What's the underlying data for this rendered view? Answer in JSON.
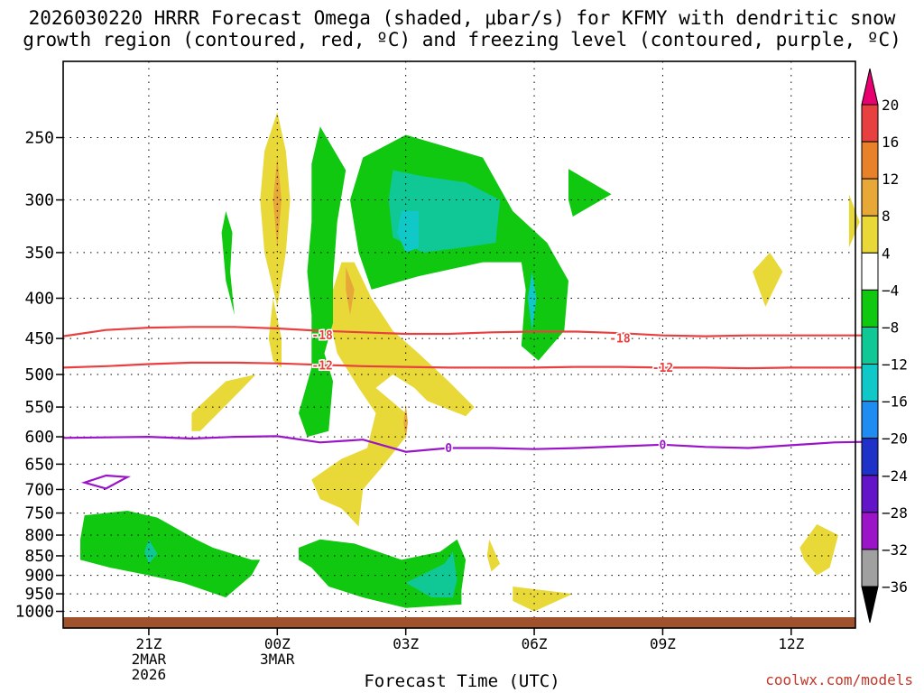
{
  "title": {
    "line1": "2026030220 HRRR Forecast Omega (shaded, μbar/s) for KFMY with dendritic snow",
    "line2": "growth region (contoured, red, ºC) and freezing level (contoured, purple, ºC)"
  },
  "credit": "coolwx.com/models",
  "chart_data": {
    "type": "contour",
    "title": "2026030220 HRRR Forecast Omega (shaded, μbar/s) for KFMY with dendritic snow growth region (contoured, red, ºC) and freezing level (contoured, purple, ºC)",
    "xlabel": "Forecast Time (UTC)",
    "ylabel": "",
    "x_unit": "hours from 2026-03-02 20Z",
    "xlim": [
      -1,
      17.5
    ],
    "ylim": [
      1050,
      200
    ],
    "y_scale": "log",
    "y_ticks": [
      250,
      300,
      350,
      400,
      450,
      500,
      550,
      600,
      650,
      700,
      750,
      800,
      850,
      900,
      950,
      1000
    ],
    "x_ticks": [
      {
        "x": 1,
        "label": "21Z",
        "sub1": "2MAR",
        "sub2": "2026"
      },
      {
        "x": 4,
        "label": "00Z",
        "sub1": "3MAR",
        "sub2": ""
      },
      {
        "x": 7,
        "label": "03Z",
        "sub1": "",
        "sub2": ""
      },
      {
        "x": 10,
        "label": "06Z",
        "sub1": "",
        "sub2": ""
      },
      {
        "x": 13,
        "label": "09Z",
        "sub1": "",
        "sub2": ""
      },
      {
        "x": 16,
        "label": "12Z",
        "sub1": "",
        "sub2": ""
      }
    ],
    "grid": true,
    "colorbar": {
      "labels": [
        "20",
        "16",
        "12",
        "8",
        "4",
        "−4",
        "−8",
        "−12",
        "−16",
        "−20",
        "−24",
        "−28",
        "−32",
        "−36"
      ],
      "colors": [
        "#e8006f",
        "#e84040",
        "#e8822a",
        "#e8a838",
        "#e8d838",
        "#ffffff",
        "#10c810",
        "#10c896",
        "#10c8c8",
        "#1e8cf0",
        "#1e32c8",
        "#6414c8",
        "#9b14c8",
        "#a0a0a0",
        "#000000"
      ]
    },
    "shaded_regions": [
      {
        "color": "#e8d838",
        "points": [
          [
            4,
            232
          ],
          [
            4.2,
            260
          ],
          [
            4.3,
            300
          ],
          [
            4.2,
            350
          ],
          [
            4,
            410
          ],
          [
            3.7,
            350
          ],
          [
            3.6,
            300
          ],
          [
            3.7,
            260
          ]
        ]
      },
      {
        "color": "#e8a838",
        "points": [
          [
            4,
            265
          ],
          [
            4.1,
            300
          ],
          [
            4,
            345
          ],
          [
            3.9,
            300
          ]
        ]
      },
      {
        "color": "#e8d838",
        "points": [
          [
            3.9,
            400
          ],
          [
            4.1,
            450
          ],
          [
            4.1,
            490
          ],
          [
            3.9,
            480
          ],
          [
            3.8,
            450
          ]
        ]
      },
      {
        "color": "#e8d838",
        "points": [
          [
            2.8,
            510
          ],
          [
            3.5,
            500
          ],
          [
            3.2,
            520
          ],
          [
            2.2,
            590
          ],
          [
            2.0,
            590
          ],
          [
            2.0,
            560
          ]
        ]
      },
      {
        "color": "#e8d838",
        "points": [
          [
            5.8,
            360
          ],
          [
            6.2,
            400
          ],
          [
            6.7,
            440
          ],
          [
            7.3,
            470
          ],
          [
            8,
            510
          ],
          [
            8.6,
            550
          ],
          [
            8.4,
            565
          ],
          [
            7.5,
            540
          ],
          [
            7.2,
            520
          ],
          [
            6.7,
            500
          ],
          [
            6.3,
            520
          ],
          [
            7.0,
            560
          ],
          [
            7.0,
            600
          ],
          [
            6.4,
            660
          ],
          [
            6.0,
            700
          ],
          [
            5.9,
            780
          ],
          [
            5.5,
            740
          ],
          [
            5.0,
            720
          ],
          [
            4.8,
            680
          ],
          [
            5.5,
            640
          ],
          [
            6.1,
            620
          ],
          [
            6.3,
            560
          ],
          [
            5.9,
            520
          ],
          [
            5.4,
            470
          ],
          [
            5.2,
            420
          ],
          [
            5.3,
            390
          ],
          [
            5.5,
            360
          ]
        ]
      },
      {
        "color": "#e8a838",
        "points": [
          [
            5.6,
            365
          ],
          [
            5.8,
            390
          ],
          [
            5.7,
            420
          ],
          [
            5.6,
            390
          ]
        ]
      },
      {
        "color": "#e8a838",
        "points": [
          [
            7,
            545
          ],
          [
            7.05,
            575
          ],
          [
            7,
            605
          ],
          [
            6.95,
            575
          ]
        ]
      },
      {
        "color": "#e8d838",
        "points": [
          [
            15.5,
            350
          ],
          [
            15.8,
            370
          ],
          [
            15.4,
            410
          ],
          [
            15.1,
            370
          ]
        ]
      },
      {
        "color": "#e8d838",
        "points": [
          [
            17.35,
            295
          ],
          [
            17.6,
            320
          ],
          [
            17.35,
            345
          ]
        ]
      },
      {
        "color": "#e8d838",
        "points": [
          [
            16.6,
            775
          ],
          [
            17.1,
            800
          ],
          [
            16.9,
            880
          ],
          [
            16.6,
            900
          ],
          [
            16.3,
            860
          ],
          [
            16.2,
            830
          ]
        ]
      },
      {
        "color": "#e8d838",
        "points": [
          [
            8.95,
            810
          ],
          [
            9.2,
            870
          ],
          [
            9,
            890
          ],
          [
            8.9,
            850
          ]
        ]
      },
      {
        "color": "#e8d838",
        "points": [
          [
            9.5,
            930
          ],
          [
            10.9,
            950
          ],
          [
            10,
            1000
          ],
          [
            9.5,
            970
          ]
        ]
      },
      {
        "color": "#10c810",
        "points": [
          [
            2.8,
            310
          ],
          [
            2.95,
            330
          ],
          [
            2.9,
            370
          ],
          [
            3,
            420
          ],
          [
            2.8,
            380
          ],
          [
            2.7,
            330
          ]
        ]
      },
      {
        "color": "#10c810",
        "points": [
          [
            5,
            242
          ],
          [
            5.6,
            275
          ],
          [
            5.4,
            320
          ],
          [
            5.3,
            380
          ],
          [
            5.3,
            430
          ],
          [
            5.1,
            470
          ],
          [
            5.3,
            510
          ],
          [
            5.2,
            590
          ],
          [
            4.7,
            600
          ],
          [
            4.5,
            560
          ],
          [
            4.8,
            490
          ],
          [
            4.8,
            420
          ],
          [
            4.7,
            370
          ],
          [
            4.8,
            320
          ],
          [
            4.8,
            270
          ]
        ]
      },
      {
        "color": "#10c810",
        "points": [
          [
            7,
            248
          ],
          [
            8.8,
            265
          ],
          [
            9.5,
            310
          ],
          [
            10.3,
            340
          ],
          [
            10.8,
            380
          ],
          [
            10.7,
            440
          ],
          [
            10.1,
            480
          ],
          [
            9.7,
            460
          ],
          [
            9.8,
            390
          ],
          [
            9.7,
            360
          ],
          [
            8.8,
            360
          ],
          [
            7.3,
            375
          ],
          [
            6.2,
            390
          ],
          [
            5.9,
            350
          ],
          [
            5.7,
            300
          ],
          [
            6.0,
            265
          ]
        ]
      },
      {
        "color": "#10c896",
        "points": [
          [
            6.7,
            275
          ],
          [
            7.4,
            280
          ],
          [
            8.4,
            285
          ],
          [
            9.2,
            300
          ],
          [
            9.1,
            340
          ],
          [
            8.3,
            345
          ],
          [
            7.4,
            350
          ],
          [
            6.7,
            335
          ],
          [
            6.6,
            300
          ]
        ]
      },
      {
        "color": "#10c8c8",
        "points": [
          [
            6.9,
            310
          ],
          [
            7.3,
            310
          ],
          [
            7.3,
            345
          ],
          [
            7,
            350
          ],
          [
            6.8,
            330
          ]
        ]
      },
      {
        "color": "#10c8c8",
        "points": [
          [
            9.95,
            370
          ],
          [
            10.05,
            400
          ],
          [
            9.95,
            440
          ],
          [
            9.85,
            400
          ]
        ]
      },
      {
        "color": "#10c810",
        "points": [
          [
            10.8,
            274
          ],
          [
            11.8,
            295
          ],
          [
            10.9,
            315
          ],
          [
            10.8,
            300
          ]
        ]
      },
      {
        "color": "#10c810",
        "points": [
          [
            -0.5,
            755
          ],
          [
            0.5,
            745
          ],
          [
            1.2,
            760
          ],
          [
            2.1,
            810
          ],
          [
            2.5,
            830
          ],
          [
            3.4,
            860
          ],
          [
            3.6,
            860
          ],
          [
            3.4,
            900
          ],
          [
            2.8,
            960
          ],
          [
            1.8,
            920
          ],
          [
            1,
            900
          ],
          [
            0.1,
            880
          ],
          [
            -0.6,
            860
          ],
          [
            -0.6,
            810
          ]
        ]
      },
      {
        "color": "#10c896",
        "points": [
          [
            1,
            810
          ],
          [
            1.2,
            845
          ],
          [
            1,
            870
          ],
          [
            0.9,
            840
          ]
        ]
      },
      {
        "color": "#10c810",
        "points": [
          [
            4.5,
            830
          ],
          [
            5,
            810
          ],
          [
            5.8,
            820
          ],
          [
            6.9,
            860
          ],
          [
            7.8,
            840
          ],
          [
            8.2,
            810
          ],
          [
            8.4,
            860
          ],
          [
            8.3,
            940
          ],
          [
            8.3,
            980
          ],
          [
            7,
            990
          ],
          [
            6,
            960
          ],
          [
            5.2,
            930
          ],
          [
            4.8,
            880
          ],
          [
            4.5,
            860
          ]
        ]
      },
      {
        "color": "#10c896",
        "points": [
          [
            7,
            920
          ],
          [
            7.9,
            870
          ],
          [
            8.1,
            840
          ],
          [
            8.2,
            910
          ],
          [
            8.1,
            960
          ],
          [
            7.6,
            960
          ]
        ]
      }
    ],
    "contours": [
      {
        "name": "-18",
        "color": "#e84040",
        "label_pos": [
          5.05,
          446
        ],
        "label_pos2": [
          12.0,
          450
        ],
        "points": [
          [
            -1,
            447
          ],
          [
            0,
            439
          ],
          [
            1,
            436
          ],
          [
            2,
            435
          ],
          [
            3,
            435
          ],
          [
            4,
            437
          ],
          [
            5,
            440
          ],
          [
            6,
            442
          ],
          [
            7,
            444
          ],
          [
            8,
            444
          ],
          [
            9,
            442
          ],
          [
            10,
            441
          ],
          [
            11,
            441
          ],
          [
            12,
            443
          ],
          [
            13,
            446
          ],
          [
            14,
            447
          ],
          [
            15,
            446
          ],
          [
            16,
            446
          ],
          [
            17,
            446
          ],
          [
            17.7,
            446
          ]
        ]
      },
      {
        "name": "-12",
        "color": "#e84040",
        "label_pos": [
          5.05,
          487
        ],
        "label_pos2": [
          13.0,
          490
        ],
        "points": [
          [
            -1,
            490
          ],
          [
            0,
            488
          ],
          [
            1,
            485
          ],
          [
            2,
            483
          ],
          [
            3,
            483
          ],
          [
            4,
            484
          ],
          [
            5,
            486
          ],
          [
            6,
            488
          ],
          [
            7,
            489
          ],
          [
            8,
            490
          ],
          [
            9,
            490
          ],
          [
            10,
            490
          ],
          [
            11,
            489
          ],
          [
            12,
            489
          ],
          [
            13,
            490
          ],
          [
            14,
            490
          ],
          [
            15,
            491
          ],
          [
            16,
            490
          ],
          [
            17,
            490
          ],
          [
            17.7,
            490
          ]
        ]
      },
      {
        "name": "0",
        "color": "#9b14c8",
        "label_pos": [
          8.0,
          620
        ],
        "label_pos2": [
          13.0,
          614
        ],
        "points": [
          [
            -1,
            602
          ],
          [
            0,
            601
          ],
          [
            1,
            600
          ],
          [
            2,
            603
          ],
          [
            3,
            600
          ],
          [
            4,
            599
          ],
          [
            5,
            610
          ],
          [
            6,
            605
          ],
          [
            7,
            627
          ],
          [
            8,
            620
          ],
          [
            9,
            620
          ],
          [
            10,
            622
          ],
          [
            11,
            620
          ],
          [
            12,
            617
          ],
          [
            13,
            614
          ],
          [
            14,
            618
          ],
          [
            15,
            620
          ],
          [
            16,
            615
          ],
          [
            17,
            610
          ],
          [
            17.7,
            609
          ]
        ]
      },
      {
        "name": "freezing-loop",
        "color": "#9b14c8",
        "closed": true,
        "points": [
          [
            -0.5,
            686
          ],
          [
            0,
            672
          ],
          [
            0.5,
            675
          ],
          [
            0,
            698
          ]
        ]
      }
    ]
  }
}
